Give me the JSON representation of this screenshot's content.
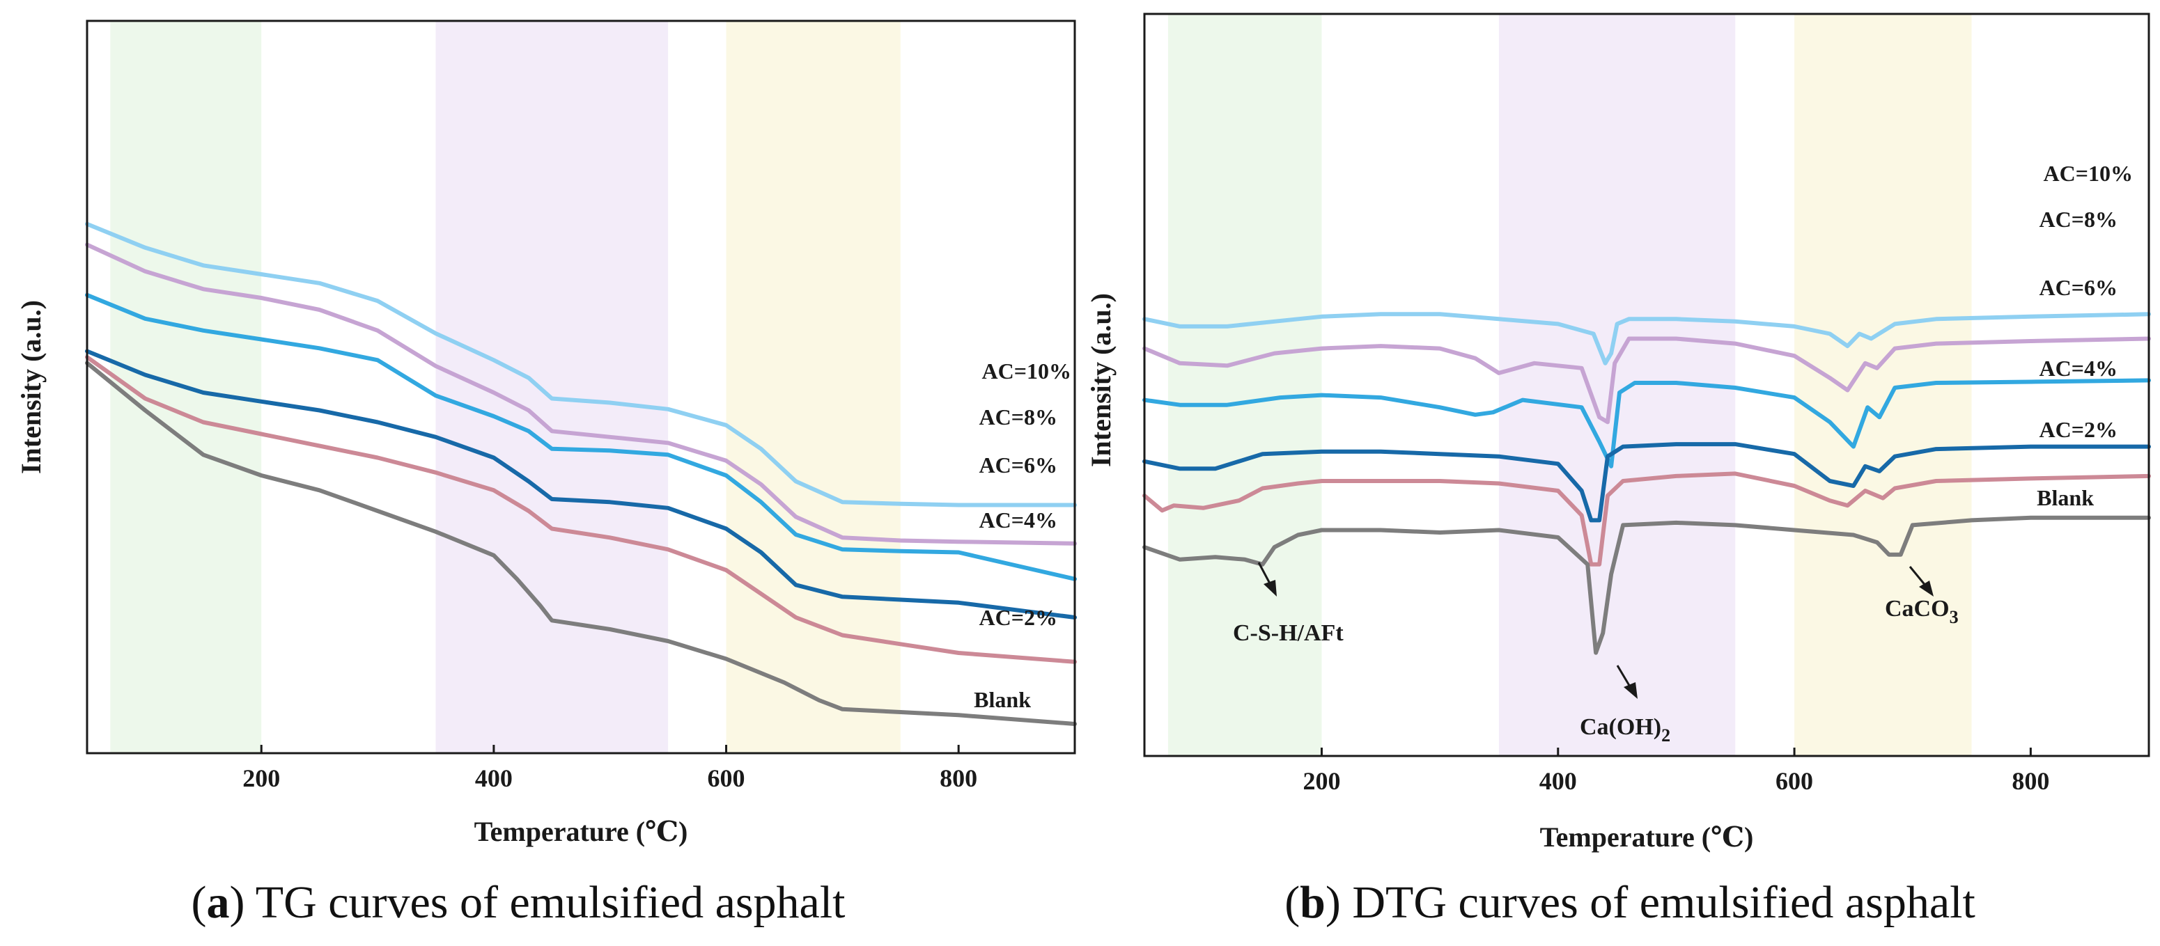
{
  "figure_captions": [
    {
      "letter": "a",
      "text": " TG curves of emulsified asphalt"
    },
    {
      "letter": "b",
      "text": " DTG curves of emulsified asphalt"
    }
  ],
  "colors": {
    "AC=10%": "#8fd0f2",
    "AC=8%": "#c6a4d3",
    "AC=6%": "#32a8e0",
    "AC=4%": "#1769a8",
    "AC=2%": "#cc8996",
    "Blank": "#7d7d7d",
    "band_green": "#edf8eb",
    "band_purple": "#f3ecf9",
    "band_yellow": "#fbf8e4"
  },
  "chart_data": [
    {
      "type": "line",
      "title": "TG curves of emulsified asphalt",
      "xlabel": "Temperature (℃)",
      "ylabel": "Intensity (a.u.)",
      "xlim": [
        50,
        900
      ],
      "ylim": [
        0,
        100
      ],
      "xticks": [
        200,
        400,
        600,
        800
      ],
      "shaded_ranges": [
        [
          70,
          200
        ],
        [
          350,
          550
        ],
        [
          600,
          750
        ]
      ],
      "series": [
        {
          "name": "AC=10%",
          "x": [
            50,
            100,
            150,
            200,
            250,
            300,
            350,
            400,
            430,
            450,
            500,
            550,
            600,
            630,
            660,
            700,
            750,
            800,
            900
          ],
          "y": [
            84.5,
            80.5,
            77.5,
            76,
            74.5,
            71.5,
            66,
            61.5,
            58.5,
            55,
            54.3,
            53.2,
            50.5,
            46.5,
            41,
            37.5,
            37.2,
            37,
            37
          ]
        },
        {
          "name": "AC=8%",
          "x": [
            50,
            100,
            150,
            200,
            250,
            300,
            350,
            400,
            430,
            450,
            500,
            550,
            600,
            630,
            660,
            700,
            750,
            800,
            900
          ],
          "y": [
            81,
            76.5,
            73.5,
            72,
            70,
            66.5,
            60.5,
            56,
            53,
            49.5,
            48.5,
            47.5,
            44.5,
            40.5,
            35,
            31.5,
            31,
            30.8,
            30.5
          ]
        },
        {
          "name": "AC=6%",
          "x": [
            50,
            100,
            150,
            200,
            250,
            300,
            350,
            400,
            430,
            450,
            500,
            550,
            600,
            630,
            660,
            700,
            750,
            800,
            900
          ],
          "y": [
            72.5,
            68.5,
            66.5,
            65,
            63.5,
            61.5,
            55.5,
            52,
            49.5,
            46.5,
            46.2,
            45.5,
            42,
            37.5,
            32,
            29.5,
            29.2,
            29,
            24.5
          ]
        },
        {
          "name": "AC=4%",
          "x": [
            50,
            100,
            150,
            200,
            250,
            300,
            350,
            400,
            430,
            450,
            500,
            550,
            600,
            630,
            660,
            700,
            750,
            800,
            900
          ],
          "y": [
            63,
            59,
            56,
            54.5,
            53,
            51,
            48.5,
            45,
            41,
            38,
            37.5,
            36.5,
            33,
            29,
            23.5,
            21.5,
            21,
            20.5,
            18
          ]
        },
        {
          "name": "AC=2%",
          "x": [
            50,
            100,
            150,
            200,
            250,
            300,
            350,
            400,
            430,
            450,
            500,
            550,
            600,
            630,
            660,
            700,
            750,
            800,
            900
          ],
          "y": [
            62,
            55,
            51,
            49,
            47,
            45,
            42.5,
            39.5,
            36,
            33,
            31.5,
            29.5,
            26,
            22,
            18,
            15,
            13.5,
            12,
            10.5
          ]
        },
        {
          "name": "Blank",
          "x": [
            50,
            100,
            150,
            200,
            250,
            300,
            350,
            400,
            420,
            440,
            450,
            500,
            550,
            600,
            650,
            680,
            700,
            750,
            800,
            900
          ],
          "y": [
            61,
            53,
            45.5,
            42,
            39.5,
            36,
            32.5,
            28.5,
            24.5,
            20,
            17.5,
            16,
            14,
            11,
            7,
            4,
            2.5,
            2,
            1.5,
            0
          ]
        }
      ],
      "series_labels": [
        "AC=10%",
        "AC=8%",
        "AC=6%",
        "AC=4%",
        "AC=2%",
        "Blank"
      ]
    },
    {
      "type": "line",
      "title": "DTG curves of emulsified asphalt",
      "xlabel": "Temperature (℃)",
      "ylabel": "Intensity (a.u.)",
      "xlim": [
        50,
        900
      ],
      "ylim": [
        0,
        100
      ],
      "xticks": [
        200,
        400,
        600,
        800
      ],
      "shaded_ranges": [
        [
          70,
          200
        ],
        [
          350,
          550
        ],
        [
          600,
          750
        ]
      ],
      "series": [
        {
          "name": "AC=10%",
          "x": [
            50,
            80,
            120,
            160,
            200,
            250,
            300,
            350,
            400,
            430,
            440,
            445,
            450,
            460,
            500,
            550,
            600,
            630,
            645,
            655,
            665,
            675,
            685,
            720,
            800,
            900
          ],
          "y": [
            74,
            72.5,
            72.5,
            73.5,
            74.5,
            75,
            75,
            74,
            73,
            71,
            65,
            67,
            73,
            74,
            74,
            73.5,
            72.5,
            71,
            68.5,
            71,
            70,
            71.5,
            73,
            74,
            74.5,
            75
          ]
        },
        {
          "name": "AC=8%",
          "x": [
            50,
            80,
            120,
            160,
            200,
            250,
            300,
            330,
            350,
            380,
            420,
            435,
            442,
            448,
            460,
            500,
            550,
            600,
            630,
            645,
            660,
            670,
            685,
            720,
            800,
            900
          ],
          "y": [
            68,
            65,
            64.5,
            67,
            68,
            68.5,
            68,
            66,
            63,
            65,
            64,
            54,
            53,
            65,
            70,
            70,
            69,
            66.5,
            62,
            59.5,
            65,
            64,
            68,
            69,
            69.5,
            70
          ]
        },
        {
          "name": "AC=6%",
          "x": [
            50,
            80,
            120,
            165,
            200,
            250,
            300,
            330,
            345,
            370,
            420,
            435,
            445,
            452,
            465,
            500,
            550,
            600,
            630,
            650,
            662,
            672,
            685,
            720,
            800,
            900
          ],
          "y": [
            57.5,
            56.5,
            56.5,
            58,
            58.5,
            58,
            56,
            54.5,
            55,
            57.5,
            56,
            49,
            44,
            59,
            61,
            61,
            60,
            58,
            53,
            48,
            56,
            54,
            60,
            61,
            61.2,
            61.5
          ]
        },
        {
          "name": "AC=4%",
          "x": [
            50,
            80,
            110,
            150,
            200,
            250,
            300,
            350,
            400,
            420,
            428,
            435,
            442,
            455,
            500,
            550,
            600,
            630,
            650,
            660,
            672,
            685,
            720,
            800,
            900
          ],
          "y": [
            45,
            43.5,
            43.5,
            46.5,
            47,
            47,
            46.5,
            46,
            44.5,
            39,
            33,
            33,
            46,
            48,
            48.5,
            48.5,
            46.5,
            41,
            40,
            44,
            43,
            46,
            47.5,
            48,
            48
          ]
        },
        {
          "name": "AC=2%",
          "x": [
            50,
            65,
            75,
            100,
            130,
            150,
            180,
            200,
            250,
            300,
            350,
            400,
            420,
            428,
            435,
            442,
            455,
            500,
            550,
            600,
            630,
            645,
            660,
            675,
            685,
            720,
            800,
            900
          ],
          "y": [
            38,
            35,
            36,
            35.5,
            37,
            39.5,
            40.5,
            41,
            41,
            41,
            40.5,
            39,
            34,
            24,
            24,
            38,
            41,
            42,
            42.5,
            40,
            37,
            36,
            39,
            37.5,
            39.5,
            41,
            41.5,
            42
          ]
        },
        {
          "name": "Blank",
          "x": [
            50,
            80,
            110,
            135,
            150,
            160,
            180,
            200,
            250,
            300,
            350,
            400,
            425,
            432,
            438,
            445,
            455,
            500,
            550,
            600,
            650,
            670,
            680,
            690,
            700,
            750,
            800,
            900
          ],
          "y": [
            27.5,
            25,
            25.5,
            25,
            24,
            27.5,
            30,
            31,
            31,
            30.5,
            31,
            29.5,
            24,
            6,
            10,
            22,
            32,
            32.5,
            32,
            31,
            30,
            28.5,
            26,
            26,
            32,
            33,
            33.5,
            33.5
          ]
        }
      ],
      "series_labels": [
        "AC=10%",
        "AC=8%",
        "AC=6%",
        "AC=4%",
        "AC=2%",
        "Blank"
      ],
      "annotations": [
        {
          "id": "csh",
          "text": "C-S-H/AFt"
        },
        {
          "id": "caoh",
          "text": "Ca(OH)",
          "subscript": "2"
        },
        {
          "id": "caco",
          "text": "CaCO",
          "subscript": "3"
        }
      ]
    }
  ]
}
